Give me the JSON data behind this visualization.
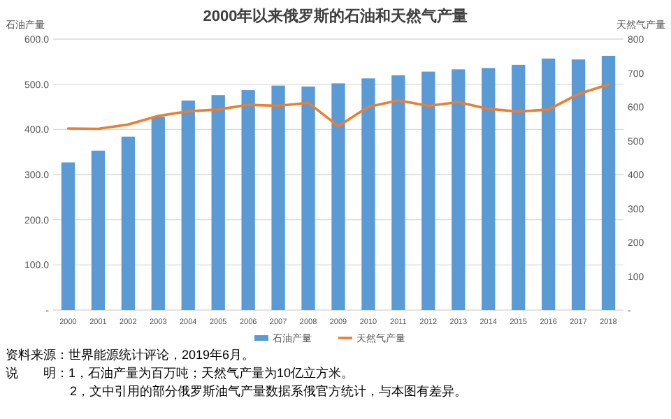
{
  "chart_data": {
    "type": "bar",
    "title": "2000年以来俄罗斯的石油和天然气产量",
    "ylabel": "石油产量",
    "y2label": "天然气产量",
    "categories": [
      "2000",
      "2001",
      "2002",
      "2003",
      "2004",
      "2005",
      "2006",
      "2007",
      "2008",
      "2009",
      "2010",
      "2011",
      "2012",
      "2013",
      "2014",
      "2015",
      "2016",
      "2017",
      "2018"
    ],
    "series": [
      {
        "name": "石油产量",
        "color": "#5b9bd5",
        "values": [
          327,
          353,
          384,
          428,
          464,
          476,
          487,
          497,
          495,
          502,
          513,
          520,
          528,
          533,
          536,
          543,
          557,
          555,
          563
        ]
      },
      {
        "name": "天然气产量",
        "type": "line",
        "axis": "y2",
        "color": "#ed7d31",
        "values": [
          536,
          535,
          548,
          573,
          587,
          592,
          606,
          603,
          612,
          543,
          600,
          619,
          603,
          614,
          594,
          586,
          592,
          638,
          666
        ]
      }
    ],
    "ylim": [
      0,
      600
    ],
    "yticks": [
      {
        "value": 0,
        "label": "-"
      },
      {
        "value": 100,
        "label": "100.0"
      },
      {
        "value": 200,
        "label": "200.0"
      },
      {
        "value": 300,
        "label": "300.0"
      },
      {
        "value": 400,
        "label": "400.0"
      },
      {
        "value": 500,
        "label": "500.0"
      },
      {
        "value": 600,
        "label": "600.0"
      }
    ],
    "y2lim": [
      0,
      800
    ],
    "y2ticks": [
      {
        "value": 0,
        "label": "-"
      },
      100,
      200,
      300,
      400,
      500,
      600,
      700,
      800
    ],
    "grid": "y",
    "legend": "bottom",
    "marker": "none",
    "line_style": "solid",
    "annotations": [
      "资料来源：世界能源统计评论，2019年6月。",
      "说　　明：1，石油产量为百万吨；天然气产量为10亿立方米。",
      "2，文中引用的部分俄罗斯油气产量数据系俄官方统计，与本图有差异。"
    ]
  }
}
